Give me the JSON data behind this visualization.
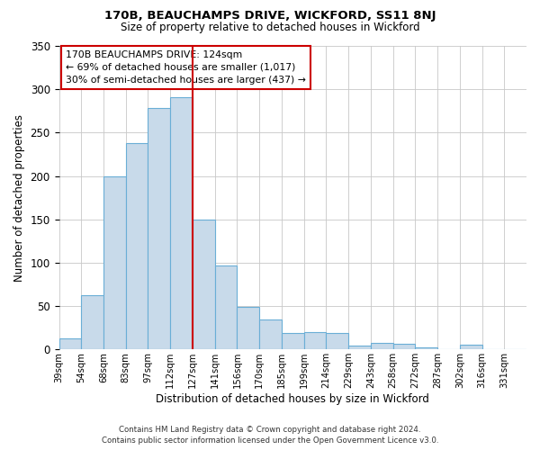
{
  "title": "170B, BEAUCHAMPS DRIVE, WICKFORD, SS11 8NJ",
  "subtitle": "Size of property relative to detached houses in Wickford",
  "xlabel": "Distribution of detached houses by size in Wickford",
  "ylabel": "Number of detached properties",
  "footer_line1": "Contains HM Land Registry data © Crown copyright and database right 2024.",
  "footer_line2": "Contains public sector information licensed under the Open Government Licence v3.0.",
  "bin_labels": [
    "39sqm",
    "54sqm",
    "68sqm",
    "83sqm",
    "97sqm",
    "112sqm",
    "127sqm",
    "141sqm",
    "156sqm",
    "170sqm",
    "185sqm",
    "199sqm",
    "214sqm",
    "229sqm",
    "243sqm",
    "258sqm",
    "272sqm",
    "287sqm",
    "302sqm",
    "316sqm",
    "331sqm"
  ],
  "bar_heights": [
    13,
    63,
    200,
    238,
    278,
    291,
    150,
    97,
    49,
    35,
    19,
    20,
    19,
    4,
    8,
    7,
    2,
    0,
    5,
    0,
    0
  ],
  "bar_color": "#c8daea",
  "bar_edge_color": "#6aaed6",
  "vline_x": 6,
  "vline_color": "#cc0000",
  "annotation_title": "170B BEAUCHAMPS DRIVE: 124sqm",
  "annotation_line1": "← 69% of detached houses are smaller (1,017)",
  "annotation_line2": "30% of semi-detached houses are larger (437) →",
  "annotation_box_color": "#ffffff",
  "annotation_box_edge": "#cc0000",
  "ylim": [
    0,
    350
  ],
  "yticks": [
    0,
    50,
    100,
    150,
    200,
    250,
    300,
    350
  ],
  "background_color": "#ffffff",
  "grid_color": "#c8c8c8"
}
